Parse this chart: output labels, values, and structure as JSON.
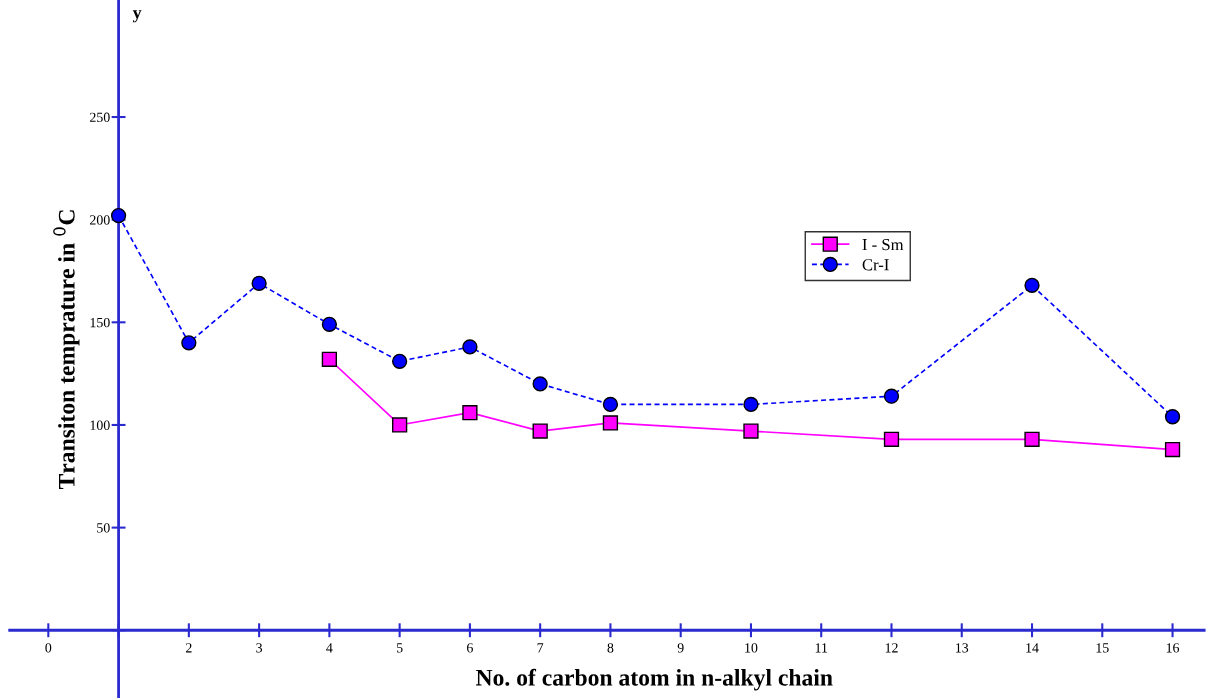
{
  "chart_data": {
    "type": "line",
    "xlabel": "No. of carbon atom in n-alkyl chain",
    "ylabel": "Transiton temprature in $^{0}$C",
    "annotations": [
      "y"
    ],
    "x": [
      1,
      2,
      3,
      4,
      5,
      6,
      7,
      8,
      10,
      12,
      14,
      16
    ],
    "series": [
      {
        "name": "I - Sm",
        "color": "#ff00ff",
        "marker": "square",
        "line_style": "solid",
        "values": [
          null,
          null,
          null,
          132,
          100,
          106,
          97,
          101,
          97,
          93,
          93,
          88
        ]
      },
      {
        "name": "Cr-I",
        "color": "#0000ff",
        "marker": "circle",
        "line_style": "dashed",
        "values": [
          202,
          140,
          169,
          149,
          131,
          138,
          120,
          110,
          110,
          114,
          168,
          104
        ]
      }
    ],
    "xlim": [
      -0.55,
      16.45
    ],
    "ylim": [
      -33,
      307
    ],
    "xticks": [
      0,
      {
        "value": 1,
        "label": null
      },
      2,
      3,
      4,
      5,
      6,
      7,
      8,
      9,
      10,
      11,
      12,
      13,
      14,
      15,
      16
    ],
    "yticks": [
      {
        "value": 0,
        "label": null
      },
      50,
      100,
      150,
      200,
      250
    ],
    "grid": false,
    "legend": "upper center"
  }
}
